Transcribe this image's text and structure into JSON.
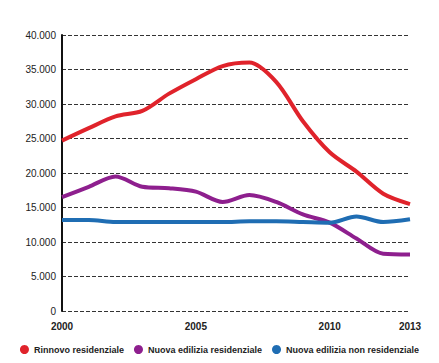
{
  "chart_data": {
    "type": "line",
    "x": [
      2000,
      2001,
      2002,
      2003,
      2004,
      2005,
      2006,
      2007,
      2008,
      2009,
      2010,
      2011,
      2012,
      2013
    ],
    "xlim": [
      2000,
      2013
    ],
    "xticks": [
      2000,
      2005,
      2010,
      2013
    ],
    "ylim": [
      0,
      40000
    ],
    "yticks": [
      0,
      {
        "value": 5000,
        "label": "5.000"
      },
      {
        "value": 10000,
        "label": "10.000"
      },
      {
        "value": 15000,
        "label": "15.000"
      },
      {
        "value": 20000,
        "label": "20.000"
      },
      {
        "value": 25000,
        "label": "25.000"
      },
      {
        "value": 30000,
        "label": "30.000"
      },
      {
        "value": 35000,
        "label": "35.000"
      },
      {
        "value": 40000,
        "label": "40.000"
      }
    ],
    "grid": true,
    "legend": "bottom",
    "series": [
      {
        "name": "Rinnovo residenziale",
        "color": "#e0232b",
        "values": [
          24700,
          26500,
          28200,
          29000,
          31500,
          33600,
          35500,
          36000,
          33200,
          27500,
          23000,
          20200,
          17000,
          15500
        ]
      },
      {
        "name": "Nuova edilizia residenziale",
        "color": "#8e1f8e",
        "values": [
          16500,
          18000,
          19500,
          18000,
          17800,
          17300,
          15800,
          16800,
          15800,
          14000,
          12800,
          10500,
          8300,
          8200
        ]
      },
      {
        "name": "Nuova edilizia non residenziale",
        "color": "#1f6db3",
        "values": [
          13200,
          13200,
          12900,
          12900,
          12900,
          12900,
          12900,
          13000,
          13000,
          12900,
          12800,
          13700,
          12900,
          13300
        ]
      }
    ]
  }
}
